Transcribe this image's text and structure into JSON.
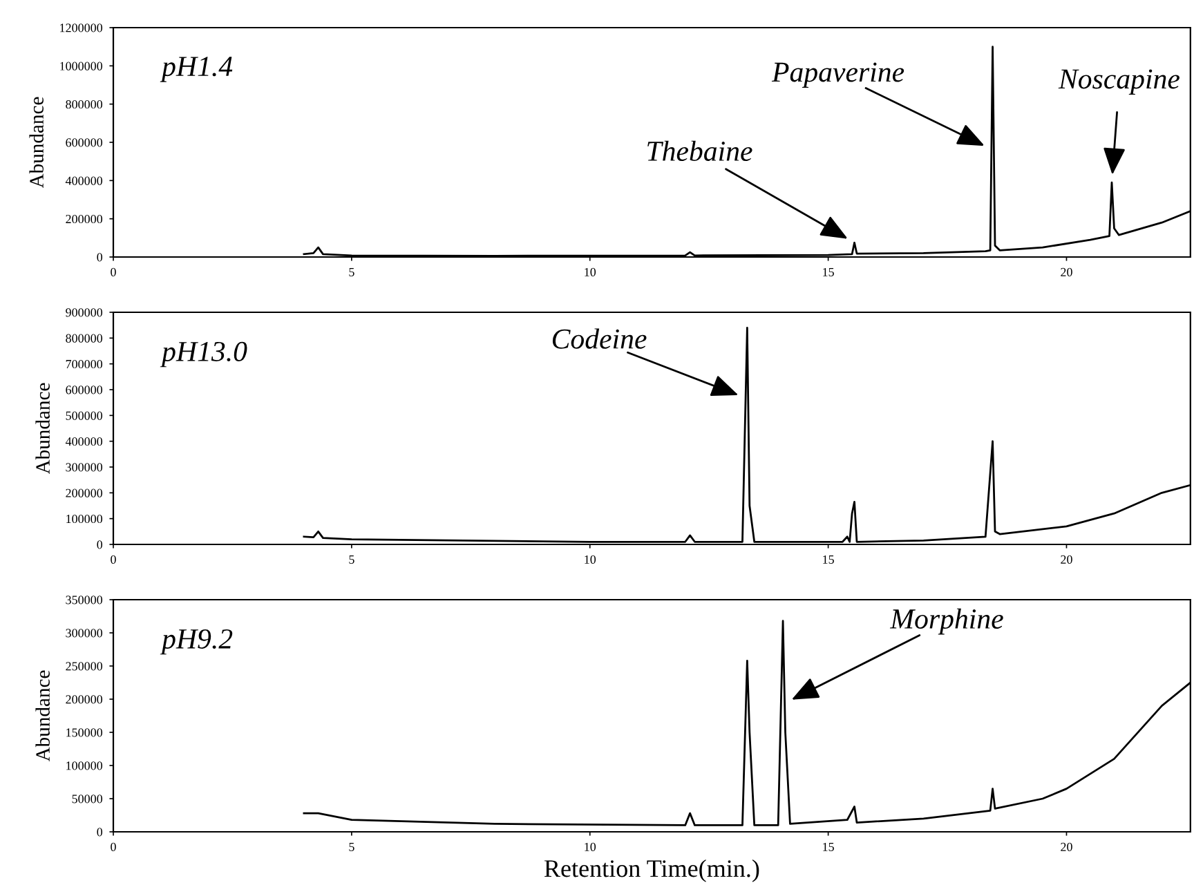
{
  "chart_data": [
    {
      "type": "line",
      "ylabel": "Abundance",
      "xlim": [
        0,
        22.6
      ],
      "xticks": [
        0,
        5,
        10,
        15,
        20
      ],
      "ylim": [
        0,
        1200000
      ],
      "yticks": [
        0,
        200000,
        400000,
        600000,
        800000,
        1000000,
        1200000
      ],
      "annotations": [
        "pH1.4",
        {
          "text": "Thebaine",
          "x": 15.55,
          "y": 75000
        },
        {
          "text": "Papaverine",
          "x": 18.425,
          "y": 564000
        },
        {
          "text": "Noscapine",
          "x": 20.95,
          "y": 390000
        }
      ],
      "x": [
        4.0,
        4.2,
        4.3,
        4.4,
        5,
        8,
        12.0,
        12.1,
        12.2,
        15.0,
        15.5,
        15.55,
        15.6,
        17,
        18.3,
        18.4,
        18.425,
        18.45,
        18.5,
        18.6,
        19.5,
        20.5,
        20.9,
        20.95,
        21.0,
        21.1,
        22,
        22.6
      ],
      "series": [
        {
          "color": "#000000",
          "values": [
            15000,
            20000,
            50000,
            15000,
            8000,
            6000,
            8000,
            25000,
            8000,
            10000,
            15000,
            75000,
            18000,
            20000,
            30000,
            35000,
            564000,
            1100000,
            60000,
            35000,
            50000,
            90000,
            110000,
            390000,
            150000,
            115000,
            180000,
            240000
          ]
        }
      ]
    },
    {
      "type": "line",
      "ylabel": "Abundance",
      "xlim": [
        0,
        22.6
      ],
      "xticks": [
        0,
        5,
        10,
        15,
        20
      ],
      "ylim": [
        0,
        900000
      ],
      "yticks": [
        0,
        100000,
        200000,
        300000,
        400000,
        500000,
        600000,
        700000,
        800000,
        900000
      ],
      "annotations": [
        "pH13.0",
        {
          "text": "Codeine",
          "x": 13.267,
          "y": 568000
        }
      ],
      "x": [
        4.0,
        4.2,
        4.3,
        4.4,
        5,
        10,
        12.0,
        12.1,
        12.2,
        13.2,
        13.267,
        13.3,
        13.35,
        13.45,
        15.3,
        15.4,
        15.45,
        15.5,
        15.55,
        15.6,
        17,
        18.3,
        18.45,
        18.5,
        18.6,
        20,
        21,
        22,
        22.6
      ],
      "series": [
        {
          "color": "#000000",
          "values": [
            30000,
            28000,
            50000,
            25000,
            20000,
            10000,
            10000,
            35000,
            10000,
            10000,
            568000,
            840000,
            150000,
            10000,
            10000,
            30000,
            10000,
            120000,
            165000,
            10000,
            15000,
            30000,
            400000,
            50000,
            40000,
            70000,
            120000,
            200000,
            230000
          ]
        }
      ]
    },
    {
      "type": "line",
      "ylabel": "Abundance",
      "xlabel": "Retention Time(min.)",
      "xlim": [
        0,
        22.6
      ],
      "xticks": [
        0,
        5,
        10,
        15,
        20
      ],
      "ylim": [
        0,
        350000
      ],
      "yticks": [
        0,
        50000,
        100000,
        150000,
        200000,
        250000,
        300000,
        350000
      ],
      "annotations": [
        "pH9.2",
        {
          "text": "Morphine",
          "x": 14.087,
          "y": 194000
        }
      ],
      "x": [
        4.0,
        4.3,
        5,
        8,
        12.0,
        12.1,
        12.2,
        13.2,
        13.3,
        13.35,
        13.45,
        13.95,
        14.05,
        14.087,
        14.1,
        14.2,
        15.4,
        15.55,
        15.6,
        17,
        18.4,
        18.45,
        18.5,
        19.5,
        20,
        21,
        22,
        22.6
      ],
      "series": [
        {
          "color": "#000000",
          "values": [
            28000,
            28000,
            18000,
            12000,
            10000,
            28000,
            10000,
            10000,
            258000,
            150000,
            10000,
            10000,
            318000,
            194000,
            150000,
            12000,
            18000,
            38000,
            14000,
            20000,
            32000,
            65000,
            35000,
            50000,
            65000,
            110000,
            190000,
            225000
          ]
        }
      ]
    }
  ]
}
